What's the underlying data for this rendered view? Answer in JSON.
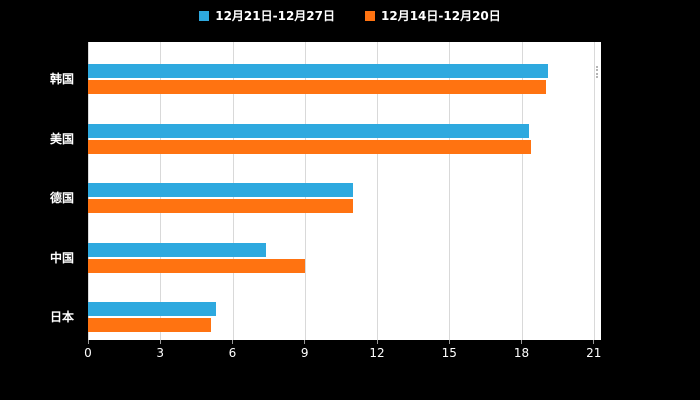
{
  "background": "#000000",
  "plot": {
    "bg": "#ffffff",
    "grid_color": "#d9d9d9",
    "tick_color": "#999999",
    "label_color": "#ffffff"
  },
  "legend": {
    "items": [
      {
        "label": "12月21日-12月27日",
        "color": "#2EA9DF"
      },
      {
        "label": "12月14日-12月20日",
        "color": "#FF7311"
      }
    ]
  },
  "chart_data": {
    "type": "bar",
    "orientation": "horizontal",
    "title": "",
    "categories": [
      "韩国",
      "美国",
      "德国",
      "中国",
      "日本"
    ],
    "series": [
      {
        "name": "12月21日-12月27日",
        "color": "#2EA9DF",
        "values": [
          19.1,
          18.3,
          11.0,
          7.4,
          5.3
        ]
      },
      {
        "name": "12月14日-12月20日",
        "color": "#FF7311",
        "values": [
          19.0,
          18.4,
          11.0,
          9.0,
          5.1
        ]
      }
    ],
    "xlim": [
      0,
      21
    ],
    "xticks": [
      0,
      3,
      6,
      9,
      12,
      15,
      18,
      21
    ],
    "grid": true,
    "legend_position": "top"
  }
}
